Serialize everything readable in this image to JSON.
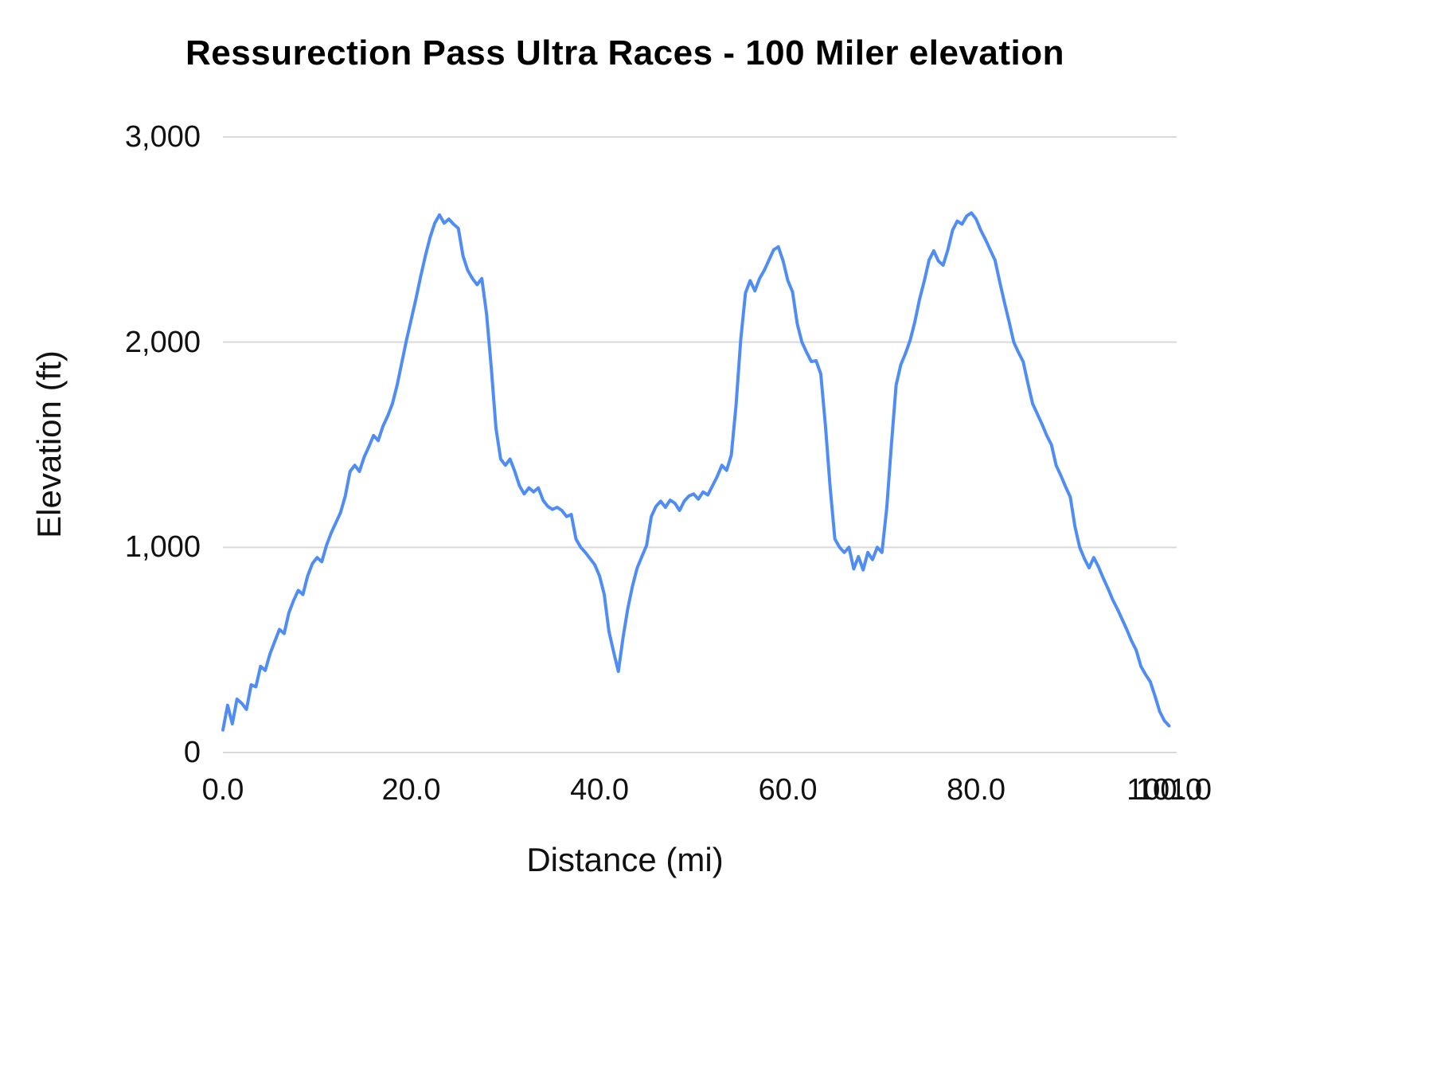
{
  "title": "Ressurection Pass Ultra Races - 100 Miler elevation",
  "x_axis": {
    "label": "Distance (mi)",
    "ticks": [
      {
        "value": 0,
        "label": "0.0"
      },
      {
        "value": 20,
        "label": "20.0"
      },
      {
        "value": 40,
        "label": "40.0"
      },
      {
        "value": 60,
        "label": "60.0"
      },
      {
        "value": 80,
        "label": "80.0"
      },
      {
        "value": 100,
        "label": "100.0"
      },
      {
        "value": 101,
        "label": "101.0"
      }
    ]
  },
  "y_axis": {
    "label": "Elevation (ft)",
    "ticks": [
      {
        "value": 0,
        "label": "0"
      },
      {
        "value": 1000,
        "label": "1,000"
      },
      {
        "value": 2000,
        "label": "2,000"
      },
      {
        "value": 3000,
        "label": "3,000"
      }
    ]
  },
  "chart_data": {
    "type": "line",
    "title": "Ressurection Pass Ultra Races - 100 Miler elevation",
    "xlabel": "Distance (mi)",
    "ylabel": "Elevation (ft)",
    "xlim": [
      0,
      101.3
    ],
    "ylim": [
      0,
      3000
    ],
    "grid": "horizontal",
    "legend": "none",
    "line_color": "#4f8df5",
    "gridline_color": "#d9d9d9",
    "x_unit": "mi",
    "y_unit": "ft",
    "x_start": 0,
    "x_step": 0.5,
    "elevations_ft": [
      110,
      230,
      140,
      260,
      240,
      210,
      330,
      320,
      420,
      400,
      480,
      540,
      600,
      580,
      680,
      740,
      790,
      770,
      860,
      920,
      950,
      930,
      1010,
      1070,
      1120,
      1170,
      1250,
      1370,
      1400,
      1370,
      1440,
      1490,
      1545,
      1520,
      1590,
      1640,
      1700,
      1790,
      1900,
      2010,
      2110,
      2210,
      2320,
      2420,
      2510,
      2580,
      2620,
      2580,
      2600,
      2575,
      2555,
      2420,
      2350,
      2310,
      2280,
      2310,
      2140,
      1880,
      1580,
      1430,
      1400,
      1430,
      1370,
      1300,
      1260,
      1290,
      1270,
      1290,
      1230,
      1200,
      1185,
      1195,
      1180,
      1150,
      1160,
      1040,
      1000,
      975,
      945,
      915,
      860,
      770,
      590,
      490,
      395,
      560,
      700,
      810,
      900,
      955,
      1010,
      1150,
      1200,
      1225,
      1195,
      1230,
      1215,
      1180,
      1225,
      1250,
      1260,
      1235,
      1270,
      1255,
      1300,
      1345,
      1400,
      1375,
      1450,
      1690,
      2010,
      2240,
      2300,
      2250,
      2310,
      2350,
      2400,
      2450,
      2465,
      2395,
      2300,
      2245,
      2090,
      2000,
      1950,
      1905,
      1910,
      1845,
      1590,
      1290,
      1040,
      1000,
      975,
      1000,
      895,
      955,
      890,
      975,
      940,
      1000,
      975,
      1190,
      1500,
      1790,
      1890,
      1945,
      2010,
      2100,
      2210,
      2300,
      2400,
      2445,
      2395,
      2375,
      2450,
      2545,
      2590,
      2575,
      2615,
      2630,
      2600,
      2545,
      2500,
      2450,
      2400,
      2295,
      2195,
      2100,
      2000,
      1950,
      1905,
      1800,
      1700,
      1650,
      1600,
      1545,
      1500,
      1400,
      1350,
      1295,
      1245,
      1100,
      1000,
      945,
      900,
      950,
      905,
      850,
      800,
      745,
      700,
      650,
      600,
      545,
      500,
      420,
      380,
      345,
      275,
      200,
      155,
      130
    ]
  }
}
